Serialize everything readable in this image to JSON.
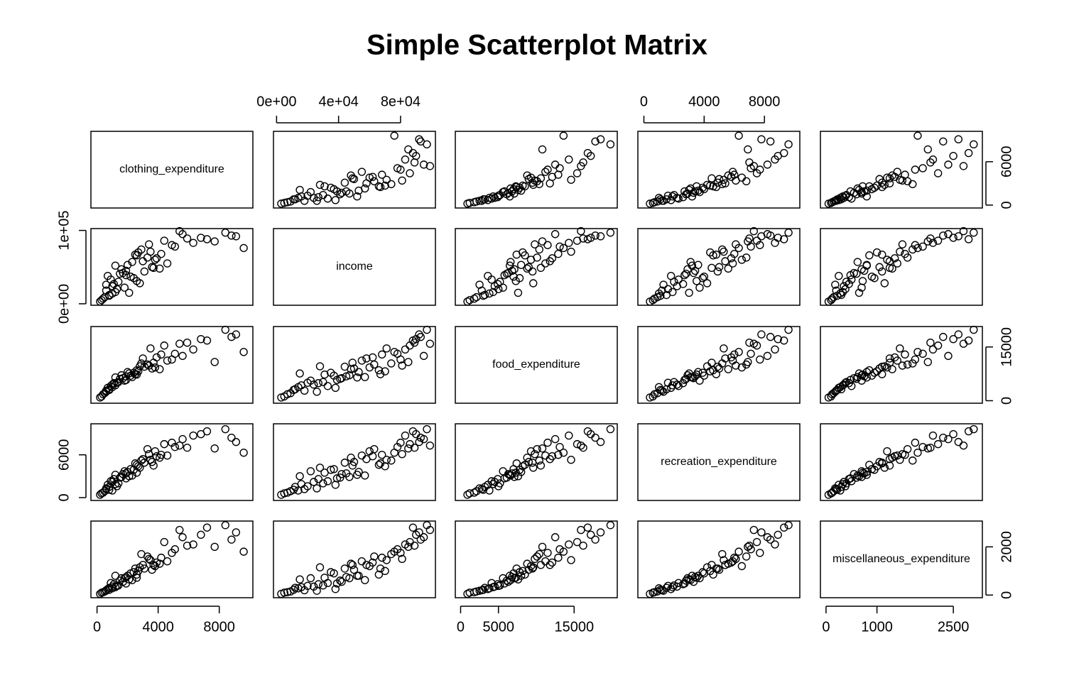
{
  "chart_data": {
    "type": "scatter_matrix",
    "title": "Simple Scatterplot Matrix",
    "color": "#000000",
    "variables": [
      {
        "name": "clothing_expenditure",
        "lim": [
          -400,
          10200
        ],
        "hticks": [
          0,
          4000,
          8000
        ],
        "vticks": [
          0,
          6000
        ],
        "values": [
          1200,
          3400,
          800,
          2500,
          5600,
          900,
          4100,
          1800,
          300,
          2900,
          7200,
          1500,
          3800,
          600,
          2200,
          9100,
          1100,
          4600,
          2700,
          500,
          6300,
          1900,
          3300,
          1400,
          8400,
          2100,
          700,
          5100,
          3600,
          1000,
          2600,
          4400,
          200,
          1700,
          6800,
          3000,
          1300,
          2400,
          9600,
          800,
          3900,
          1600,
          5400,
          2800,
          400,
          7700,
          2000,
          3500,
          1200,
          4900,
          600,
          3100,
          2300,
          8800,
          1900,
          4200,
          1000,
          2600,
          5900,
          3700
        ]
      },
      {
        "name": "income",
        "lim": [
          -2000,
          102500
        ],
        "hticks": [
          {
            "value": 0,
            "label": "0e+00"
          },
          {
            "value": 40000,
            "label": "4e+04"
          },
          {
            "value": 80000,
            "label": "8e+04"
          }
        ],
        "vticks": [
          {
            "value": 0,
            "label": "0e+00"
          },
          {
            "value": 100000,
            "label": "1e+05"
          }
        ],
        "values": [
          52000,
          81000,
          12000,
          67000,
          95000,
          33000,
          48000,
          22000,
          5000,
          74000,
          88000,
          41000,
          60000,
          18000,
          37000,
          92000,
          27000,
          55000,
          70000,
          9000,
          83000,
          45000,
          63000,
          30000,
          97000,
          15000,
          38000,
          78000,
          50000,
          24000,
          66000,
          86000,
          3000,
          42000,
          90000,
          58000,
          20000,
          35000,
          76000,
          11000,
          62000,
          47000,
          99000,
          28000,
          7000,
          85000,
          53000,
          71000,
          16000,
          80000,
          26000,
          44000,
          57000,
          93000,
          39000,
          68000,
          14000,
          31000,
          89000,
          49000
        ]
      },
      {
        "name": "food_expenditure",
        "lim": [
          -700,
          20700
        ],
        "hticks": [
          0,
          5000,
          15000
        ],
        "vticks": [
          0,
          15000
        ],
        "values": [
          6500,
          9800,
          3200,
          7400,
          12500,
          4100,
          8800,
          5600,
          1200,
          10400,
          16800,
          6100,
          9300,
          2800,
          7000,
          18500,
          4900,
          11200,
          8200,
          2100,
          14300,
          6800,
          10100,
          5200,
          19800,
          7600,
          3600,
          13100,
          9000,
          4500,
          8500,
          15400,
          900,
          6300,
          17200,
          11800,
          5000,
          7800,
          13600,
          3000,
          12100,
          7100,
          15900,
          9600,
          1800,
          10800,
          8000,
          14600,
          4300,
          11500,
          2500,
          9500,
          6600,
          17800,
          5800,
          12900,
          3800,
          7300,
          16200,
          10600
        ]
      },
      {
        "name": "recreation_expenditure",
        "lim": [
          -400,
          10350
        ],
        "hticks": [
          0,
          4000,
          8000
        ],
        "vticks": [
          0,
          6000
        ],
        "values": [
          3200,
          6100,
          1500,
          4800,
          8200,
          2300,
          5600,
          3700,
          600,
          5200,
          9300,
          2800,
          6500,
          1200,
          4000,
          7800,
          2600,
          5900,
          4400,
          900,
          8700,
          3400,
          6800,
          2000,
          9600,
          3000,
          1800,
          7100,
          5000,
          2200,
          4600,
          7500,
          400,
          3300,
          8900,
          5400,
          1600,
          3900,
          6300,
          1100,
          5800,
          2900,
          7300,
          4200,
          700,
          6900,
          3600,
          5300,
          1900,
          7700,
          1300,
          4900,
          3100,
          8400,
          2700,
          6000,
          1000,
          3500,
          7000,
          4500
        ]
      },
      {
        "name": "miscellaneous_expenditure",
        "lim": [
          -110,
          3070
        ],
        "hticks": [
          0,
          1000,
          2500
        ],
        "vticks": [
          0,
          2000
        ],
        "values": [
          800,
          1500,
          300,
          1100,
          2400,
          500,
          1300,
          700,
          100,
          1700,
          2800,
          600,
          1200,
          200,
          900,
          2600,
          450,
          1400,
          1000,
          150,
          2100,
          750,
          1600,
          400,
          2900,
          650,
          250,
          1900,
          1050,
          350,
          850,
          2200,
          50,
          550,
          2500,
          1250,
          380,
          950,
          1800,
          220,
          1350,
          700,
          2700,
          1150,
          120,
          2000,
          800,
          1450,
          330,
          1750,
          180,
          1100,
          620,
          2300,
          480,
          1550,
          280,
          720,
          2050,
          1250
        ]
      }
    ]
  }
}
